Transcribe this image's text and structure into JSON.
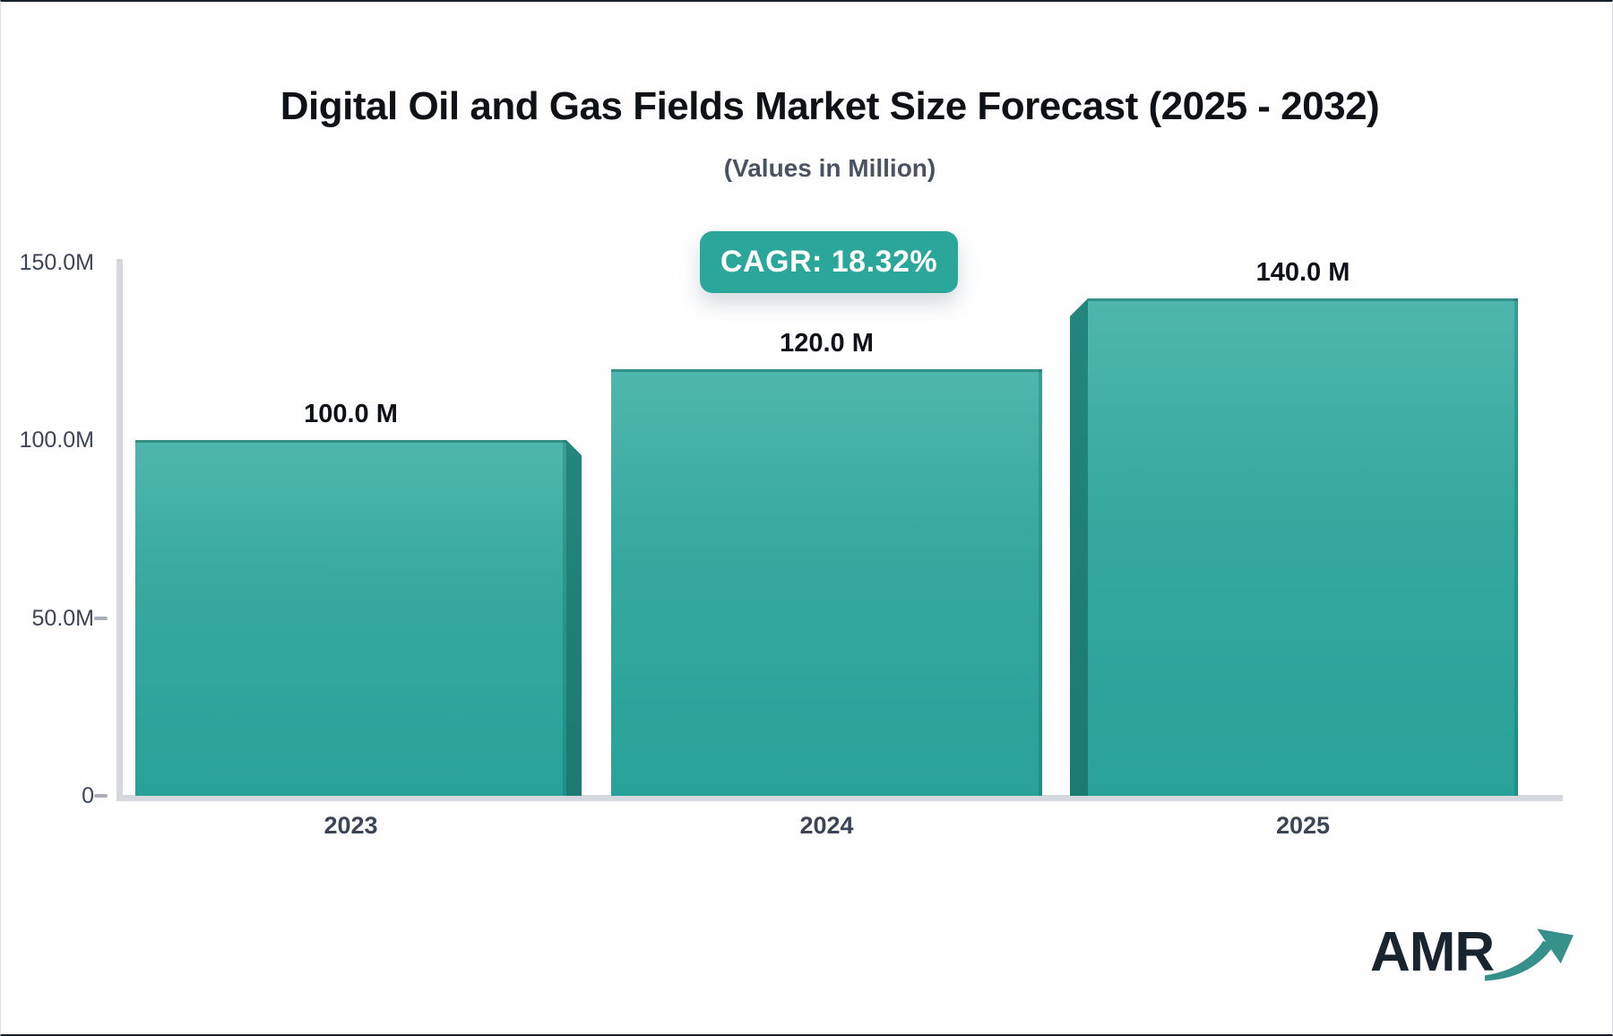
{
  "header": {
    "title": "Digital Oil and Gas Fields Market Size Forecast (2025 - 2032)",
    "subtitle": "(Values in Million)"
  },
  "badge": {
    "label": "CAGR: 18.32%",
    "color": "#2BA69B",
    "text_color": "#FFFFFF"
  },
  "chart_data": {
    "type": "bar",
    "title": "Digital Oil and Gas Fields Market Size Forecast (2025 - 2032)",
    "subtitle": "(Values in Million)",
    "unit": "Million",
    "categories": [
      "2023",
      "2024",
      "2025"
    ],
    "values": [
      100,
      120,
      140
    ],
    "value_labels": [
      "100.0 M",
      "120.0 M",
      "140.0 M"
    ],
    "cagr_pct": 18.32,
    "xlabel": "",
    "ylabel": "",
    "ylim": [
      0,
      150
    ],
    "y_ticks": [
      {
        "label": "150.0M",
        "value": 150,
        "dash": false
      },
      {
        "label": "100.0M",
        "value": 100,
        "dash": false
      },
      {
        "label": "50.0M",
        "value": 50,
        "dash": true
      },
      {
        "label": "0",
        "value": 0,
        "dash": true
      }
    ],
    "grid": false,
    "legend": "none",
    "bar_colors": {
      "top": "#4FB6AD",
      "mid": "#35A89E",
      "bottom": "#28A299",
      "side_top": "#23867E",
      "side_bottom": "#1B7A72"
    },
    "axis_color": "#D4D7DE"
  },
  "logo": {
    "text": "AMR",
    "text_color": "#1A242E",
    "arrow_color": "#37918B"
  }
}
